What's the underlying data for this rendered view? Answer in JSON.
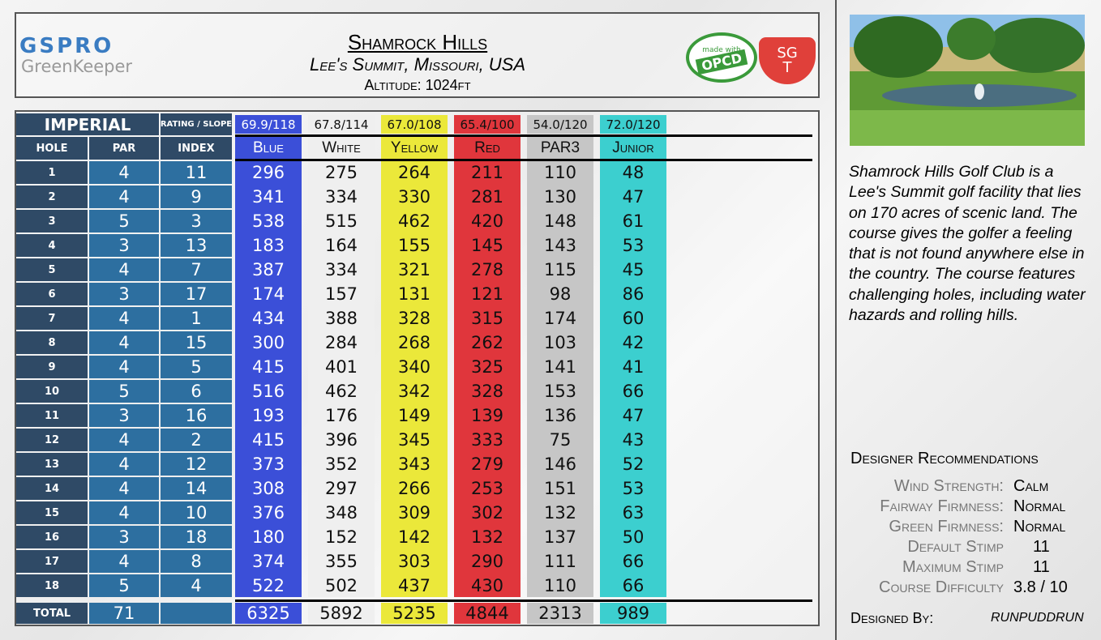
{
  "header": {
    "logo_top": "GSPRO",
    "logo_bottom": "GreenKeeper",
    "title": "Shamrock Hills",
    "location": "Lee's Summit, Missouri, USA",
    "altitude": "Altitude: 1024ft",
    "badge_top": "made with",
    "badge_main": "OPCD",
    "sgt_top": "SG",
    "sgt_bottom": "T"
  },
  "table": {
    "unit": "IMPERIAL",
    "rating_label": "RATING / SLOPE",
    "columns": [
      "HOLE",
      "PAR",
      "INDEX"
    ],
    "total_label": "TOTAL",
    "par_total": 71,
    "holes": [
      {
        "hole": 1,
        "par": 4,
        "index": 11
      },
      {
        "hole": 2,
        "par": 4,
        "index": 9
      },
      {
        "hole": 3,
        "par": 5,
        "index": 3
      },
      {
        "hole": 4,
        "par": 3,
        "index": 13
      },
      {
        "hole": 5,
        "par": 4,
        "index": 7
      },
      {
        "hole": 6,
        "par": 3,
        "index": 17
      },
      {
        "hole": 7,
        "par": 4,
        "index": 1
      },
      {
        "hole": 8,
        "par": 4,
        "index": 15
      },
      {
        "hole": 9,
        "par": 4,
        "index": 5
      },
      {
        "hole": 10,
        "par": 5,
        "index": 6
      },
      {
        "hole": 11,
        "par": 3,
        "index": 16
      },
      {
        "hole": 12,
        "par": 4,
        "index": 2
      },
      {
        "hole": 13,
        "par": 4,
        "index": 12
      },
      {
        "hole": 14,
        "par": 4,
        "index": 14
      },
      {
        "hole": 15,
        "par": 4,
        "index": 10
      },
      {
        "hole": 16,
        "par": 3,
        "index": 18
      },
      {
        "hole": 17,
        "par": 4,
        "index": 8
      },
      {
        "hole": 18,
        "par": 5,
        "index": 4
      }
    ],
    "tees": [
      {
        "rating": "69.9/118",
        "name": "Blue",
        "color": "#3b4fd8",
        "text_color": "#ffffff",
        "yards": [
          296,
          341,
          538,
          183,
          387,
          174,
          434,
          300,
          415,
          516,
          193,
          415,
          373,
          308,
          376,
          180,
          374,
          522
        ],
        "total": 6325
      },
      {
        "rating": "67.8/114",
        "name": "White",
        "color": "#efefef",
        "text_color": "#111111",
        "yards": [
          275,
          334,
          515,
          164,
          334,
          157,
          388,
          284,
          401,
          462,
          176,
          396,
          352,
          297,
          348,
          152,
          355,
          502
        ],
        "total": 5892
      },
      {
        "rating": "67.0/108",
        "name": "Yellow",
        "color": "#ebe83a",
        "text_color": "#111111",
        "yards": [
          264,
          330,
          462,
          155,
          321,
          131,
          328,
          268,
          340,
          342,
          149,
          345,
          343,
          266,
          309,
          142,
          303,
          437
        ],
        "total": 5235
      },
      {
        "rating": "65.4/100",
        "name": "Red",
        "color": "#e0363c",
        "text_color": "#111111",
        "yards": [
          211,
          281,
          420,
          145,
          278,
          121,
          315,
          262,
          325,
          328,
          139,
          333,
          279,
          253,
          302,
          132,
          290,
          430
        ],
        "total": 4844
      },
      {
        "rating": "54.0/120",
        "name": "PAR3",
        "color": "#c6c6c6",
        "text_color": "#111111",
        "yards": [
          110,
          130,
          148,
          143,
          115,
          98,
          174,
          103,
          141,
          153,
          136,
          75,
          146,
          151,
          132,
          137,
          111,
          110
        ],
        "total": 2313
      },
      {
        "rating": "72.0/120",
        "name": "Junior",
        "color": "#3ccfcf",
        "text_color": "#111111",
        "yards": [
          48,
          47,
          61,
          53,
          45,
          86,
          60,
          42,
          41,
          66,
          47,
          43,
          52,
          53,
          63,
          50,
          66,
          66
        ],
        "total": 989
      }
    ]
  },
  "description": "Shamrock Hills Golf Club is a Lee's Summit golf facility that lies on 170 acres of scenic land. The course gives the golfer a feeling that is not found anywhere else in the country. The course features challenging holes, including water hazards and rolling hills.",
  "recommendations": {
    "title": "Designer Recommendations",
    "items": [
      {
        "label": "Wind Strength:",
        "value": "Calm"
      },
      {
        "label": "Fairway Firmness:",
        "value": "Normal"
      },
      {
        "label": "Green Firmness:",
        "value": "Normal"
      },
      {
        "label": "Default Stimp",
        "value": "11"
      },
      {
        "label": "Maximum Stimp",
        "value": "11"
      },
      {
        "label": "Course Difficulty",
        "value": "3.8 / 10"
      }
    ]
  },
  "designer": {
    "label": "Designed By:",
    "value": "RUNPUDDRUN"
  }
}
